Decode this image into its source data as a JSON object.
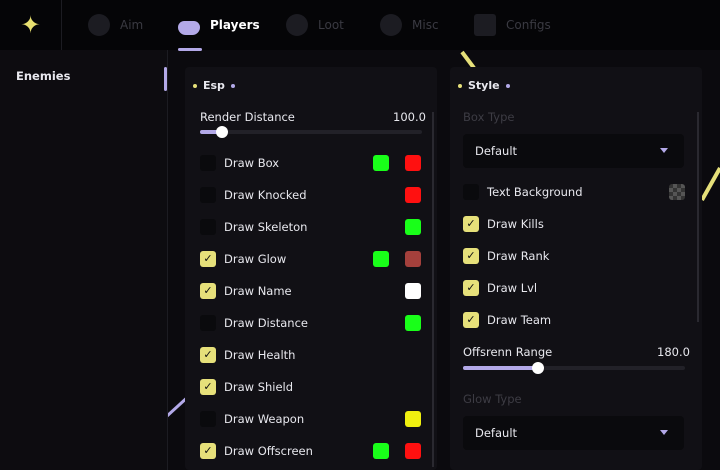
{
  "header": {
    "tabs": [
      {
        "label": "Aim",
        "icon": "crosshair-icon"
      },
      {
        "label": "Players",
        "icon": "players-icon",
        "active": true
      },
      {
        "label": "Loot",
        "icon": "loot-icon"
      },
      {
        "label": "Misc",
        "icon": "misc-icon"
      },
      {
        "label": "Configs",
        "icon": "save-icon"
      }
    ]
  },
  "sidebar": {
    "items": [
      {
        "label": "Enemies",
        "active": true
      }
    ]
  },
  "esp": {
    "title": "Esp",
    "render_distance": {
      "label": "Render Distance",
      "value": "100.0",
      "fraction": 0.1
    },
    "items": [
      {
        "label": "Draw Box",
        "checked": false,
        "colors": [
          "#19ff19",
          "#ff1010"
        ]
      },
      {
        "label": "Draw Knocked",
        "checked": false,
        "colors": [
          "#ff1010"
        ]
      },
      {
        "label": "Draw Skeleton",
        "checked": false,
        "colors": [
          "#19ff19"
        ]
      },
      {
        "label": "Draw Glow",
        "checked": true,
        "colors": [
          "#19ff19",
          "#a4403c"
        ]
      },
      {
        "label": "Draw Name",
        "checked": true,
        "colors": [
          "#ffffff"
        ]
      },
      {
        "label": "Draw Distance",
        "checked": false,
        "colors": [
          "#19ff19"
        ]
      },
      {
        "label": "Draw Health",
        "checked": true,
        "colors": []
      },
      {
        "label": "Draw Shield",
        "checked": true,
        "colors": []
      },
      {
        "label": "Draw Weapon",
        "checked": false,
        "colors": [
          "#f0f010"
        ]
      },
      {
        "label": "Draw Offscreen",
        "checked": true,
        "colors": [
          "#19ff19",
          "#ff1010"
        ]
      }
    ]
  },
  "style": {
    "title": "Style",
    "box_type": {
      "label": "Box Type",
      "value": "Default"
    },
    "items": [
      {
        "label": "Text Background",
        "checked": false
      },
      {
        "label": "Draw Kills",
        "checked": true
      },
      {
        "label": "Draw Rank",
        "checked": true
      },
      {
        "label": "Draw Lvl",
        "checked": true
      },
      {
        "label": "Draw Team",
        "checked": true
      }
    ],
    "offscreen_range": {
      "label": "Offsrenn Range",
      "value": "180.0",
      "fraction": 0.34
    },
    "glow_type": {
      "label": "Glow Type",
      "value": "Default"
    }
  },
  "colors": {
    "accent": "#b3a9e8",
    "check": "#e6e07a"
  }
}
